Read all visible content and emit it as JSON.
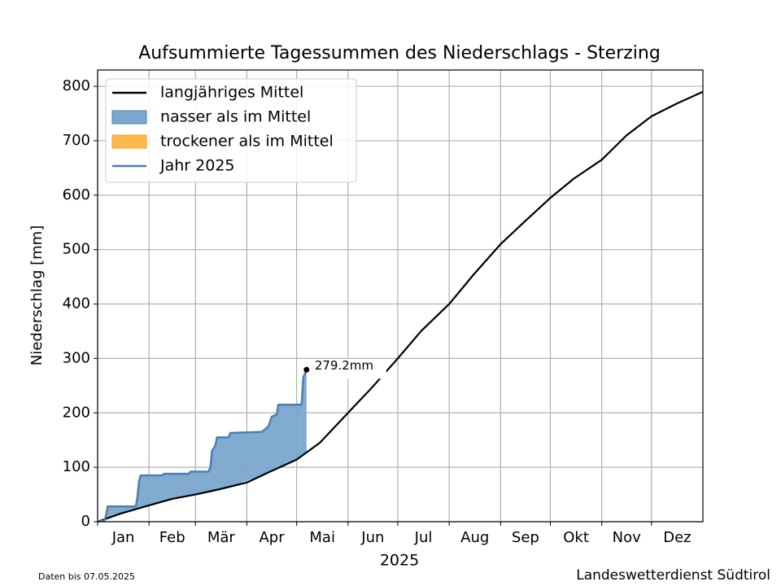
{
  "chart_data": {
    "type": "line",
    "title": "Aufsummierte Tagessummen des Niederschlags - Sterzing",
    "xlabel": "2025",
    "ylabel": "Niederschlag [mm]",
    "categories": [
      "Jan",
      "Feb",
      "Mär",
      "Apr",
      "Mai",
      "Jun",
      "Jul",
      "Aug",
      "Sep",
      "Okt",
      "Nov",
      "Dez"
    ],
    "xlim": [
      1,
      366
    ],
    "xticks": [
      1,
      32,
      60,
      91,
      121,
      152,
      182,
      213,
      244,
      274,
      305,
      335
    ],
    "ylim": [
      0,
      830
    ],
    "yticks": [
      0,
      100,
      200,
      300,
      400,
      500,
      600,
      700,
      800
    ],
    "grid": true,
    "legend_loc": "upper left",
    "series": [
      {
        "name": "langjähriges Mittel",
        "color": "#000000",
        "x": [
          1,
          15,
          32,
          46,
          60,
          75,
          91,
          105,
          121,
          135,
          152,
          166,
          182,
          196,
          213,
          228,
          244,
          258,
          274,
          288,
          305,
          320,
          335,
          350,
          366
        ],
        "values": [
          0,
          15,
          30,
          42,
          50,
          60,
          72,
          92,
          114,
          145,
          200,
          245,
          300,
          350,
          400,
          455,
          510,
          550,
          595,
          630,
          665,
          710,
          745,
          768,
          790
        ]
      },
      {
        "name": "Jahr 2025",
        "color": "#4a7fb0",
        "x": [
          1,
          5,
          6,
          7,
          24,
          25,
          26,
          27,
          40,
          41,
          56,
          57,
          68,
          69,
          70,
          72,
          73,
          80,
          81,
          100,
          104,
          106,
          109,
          110,
          124,
          125,
          126,
          127
        ],
        "values": [
          0,
          2,
          10,
          28,
          28,
          45,
          75,
          85,
          85,
          88,
          88,
          92,
          92,
          100,
          130,
          140,
          155,
          155,
          163,
          165,
          175,
          193,
          197,
          215,
          215,
          265,
          272,
          279.2
        ],
        "end_label": "279.2mm"
      }
    ],
    "fills": [
      {
        "name": "nasser als im Mittel",
        "color": "#7ba7cf"
      },
      {
        "name": "trockener als im Mittel",
        "color": "#ffb84d"
      }
    ],
    "footer_left": "Daten bis 07.05.2025",
    "footer_right": "Landeswetterdienst Südtirol"
  }
}
